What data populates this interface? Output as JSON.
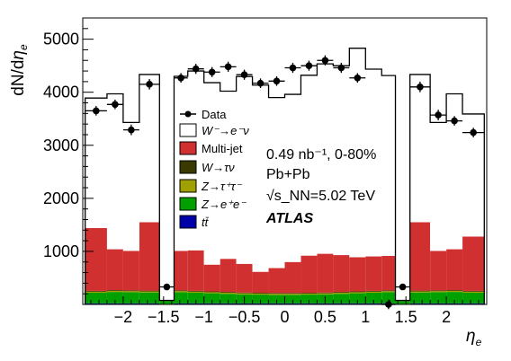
{
  "chart_data": {
    "type": "bar",
    "stacked": true,
    "xlabel": "η_e",
    "ylabel": "dN/dη_e",
    "xlim": [
      -2.5,
      2.5
    ],
    "ylim": [
      0,
      5400
    ],
    "x_ticks": [
      -2,
      -1.5,
      -1,
      -0.5,
      0,
      0.5,
      1,
      1.5,
      2
    ],
    "y_ticks": [
      1000,
      2000,
      3000,
      4000,
      5000
    ],
    "bin_edges": [
      -2.47,
      -2.2,
      -2.0,
      -1.8,
      -1.55,
      -1.37,
      -1.2,
      -1.0,
      -0.8,
      -0.6,
      -0.4,
      -0.2,
      0.0,
      0.2,
      0.4,
      0.6,
      0.8,
      1.0,
      1.2,
      1.37,
      1.55,
      1.8,
      2.0,
      2.2,
      2.47
    ],
    "crack_bins": [
      4,
      18
    ],
    "series": [
      {
        "name": "tt̄",
        "color": "#0000a8",
        "values": [
          20,
          20,
          20,
          20,
          5,
          20,
          20,
          20,
          20,
          20,
          20,
          20,
          20,
          20,
          20,
          20,
          20,
          20,
          20,
          5,
          20,
          20,
          20,
          20
        ]
      },
      {
        "name": "Z→e⁺e⁻",
        "color": "#00a000",
        "values": [
          200,
          215,
          210,
          205,
          60,
          210,
          200,
          190,
          180,
          170,
          165,
          160,
          160,
          165,
          170,
          180,
          190,
          200,
          210,
          60,
          205,
          210,
          215,
          200
        ]
      },
      {
        "name": "Z→τ⁺τ⁻",
        "color": "#a0a000",
        "values": [
          20,
          20,
          20,
          20,
          5,
          20,
          20,
          20,
          20,
          20,
          20,
          20,
          20,
          20,
          20,
          20,
          20,
          20,
          20,
          5,
          20,
          20,
          20,
          20
        ]
      },
      {
        "name": "W→τν",
        "color": "#3a3a00",
        "values": [
          15,
          15,
          15,
          15,
          5,
          15,
          15,
          15,
          15,
          15,
          15,
          15,
          15,
          15,
          15,
          15,
          15,
          15,
          15,
          5,
          15,
          15,
          15,
          15
        ]
      },
      {
        "name": "Multi-jet",
        "color": "#d03030",
        "values": [
          1185,
          770,
          745,
          1290,
          0,
          745,
          765,
          505,
          625,
          540,
          395,
          470,
          585,
          700,
          730,
          695,
          645,
          650,
          650,
          0,
          1290,
          745,
          770,
          1025
        ]
      },
      {
        "name": "W⁻→e⁻ν",
        "color": "#ffffff",
        "values": [
          2450,
          2930,
          2420,
          2785,
          0,
          3290,
          3380,
          3430,
          3160,
          3530,
          3520,
          3215,
          3160,
          3400,
          3580,
          3570,
          3940,
          3530,
          3400,
          0,
          2785,
          2420,
          2930,
          2310
        ]
      }
    ],
    "data_points": {
      "name": "Data",
      "values": [
        3650,
        3770,
        3290,
        4150,
        330,
        4270,
        4440,
        4380,
        4480,
        4330,
        4170,
        4210,
        4460,
        4500,
        4600,
        4460,
        4270,
        0,
        0,
        330,
        4100,
        3570,
        3460,
        3240
      ],
      "show": [
        true,
        true,
        true,
        true,
        true,
        true,
        true,
        true,
        true,
        true,
        true,
        true,
        true,
        true,
        true,
        true,
        true,
        false,
        true,
        true,
        true,
        true,
        true,
        true
      ],
      "errors": [
        90,
        90,
        100,
        100,
        40,
        90,
        95,
        95,
        95,
        95,
        90,
        90,
        95,
        95,
        95,
        95,
        90,
        90,
        90,
        40,
        100,
        100,
        90,
        90
      ]
    },
    "annotations": [
      "0.49 nb⁻¹, 0-80%",
      "Pb+Pb",
      "√s_NN=5.02 TeV",
      "ATLAS"
    ],
    "legend_placement": "center-left"
  },
  "legend": {
    "data": "Data",
    "w_signal": "W⁻→e⁻ν",
    "multijet": "Multi-jet",
    "w_tau": "W→τν",
    "z_tautau": "Z→τ⁺τ⁻",
    "z_ee": "Z→e⁺e⁻",
    "ttbar": "tt̄"
  },
  "info": {
    "lumi": "0.49 nb⁻¹, 0-80%",
    "system": "Pb+Pb",
    "energy": "√s_NN=5.02 TeV",
    "experiment": "ATLAS"
  }
}
